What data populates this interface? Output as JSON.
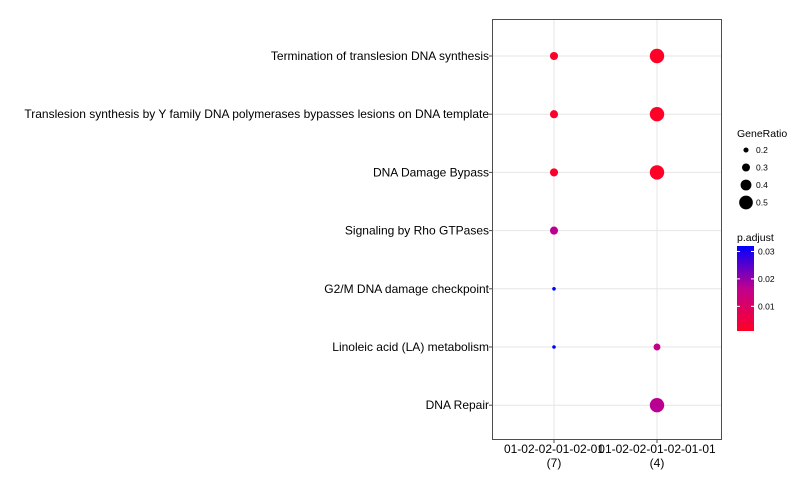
{
  "chart_data": {
    "type": "scatter",
    "title": "",
    "xlabel": "",
    "ylabel": "",
    "grid": true,
    "legend_position": "right",
    "categories_x": [
      {
        "label": "01-02-02-01-02-01",
        "count": "(7)"
      },
      {
        "label": "01-02-02-01-02-01-01",
        "count": "(4)"
      }
    ],
    "categories_y": [
      "Termination of translesion DNA synthesis",
      "Translesion synthesis by Y family DNA polymerases bypasses lesions on DNA template",
      "DNA Damage Bypass",
      "Signaling by Rho GTPases",
      "G2/M DNA damage checkpoint",
      "Linoleic acid (LA) metabolism",
      "DNA Repair"
    ],
    "points": [
      {
        "x": 0,
        "y": 0,
        "gene_ratio": 0.29,
        "p_adjust": 0.001
      },
      {
        "x": 1,
        "y": 0,
        "gene_ratio": 0.5,
        "p_adjust": 0.001
      },
      {
        "x": 0,
        "y": 1,
        "gene_ratio": 0.29,
        "p_adjust": 0.002
      },
      {
        "x": 1,
        "y": 1,
        "gene_ratio": 0.5,
        "p_adjust": 0.001
      },
      {
        "x": 0,
        "y": 2,
        "gene_ratio": 0.29,
        "p_adjust": 0.002
      },
      {
        "x": 1,
        "y": 2,
        "gene_ratio": 0.5,
        "p_adjust": 0.001
      },
      {
        "x": 0,
        "y": 3,
        "gene_ratio": 0.29,
        "p_adjust": 0.017
      },
      {
        "x": 0,
        "y": 4,
        "gene_ratio": 0.14,
        "p_adjust": 0.032
      },
      {
        "x": 0,
        "y": 5,
        "gene_ratio": 0.14,
        "p_adjust": 0.032
      },
      {
        "x": 1,
        "y": 5,
        "gene_ratio": 0.25,
        "p_adjust": 0.016
      },
      {
        "x": 1,
        "y": 6,
        "gene_ratio": 0.5,
        "p_adjust": 0.017
      }
    ],
    "size_legend": {
      "title": "GeneRatio",
      "values": [
        0.2,
        0.3,
        0.4,
        0.5
      ],
      "labels": [
        "0.2",
        "0.3",
        "0.4",
        "0.5"
      ]
    },
    "color_legend": {
      "title": "p.adjust",
      "range": [
        0.001,
        0.032
      ],
      "ticks": [
        0.01,
        0.02,
        0.03
      ],
      "tick_labels": [
        "0.01",
        "0.02",
        "0.03"
      ],
      "low_color": "#ff0026",
      "high_color": "#0000ff"
    }
  }
}
